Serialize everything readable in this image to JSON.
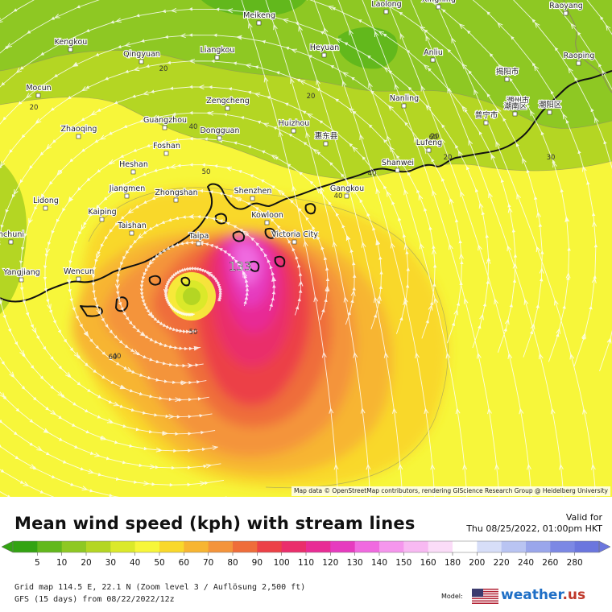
{
  "map": {
    "cities": [
      {
        "name": "Laolong"
      },
      {
        "name": "Xingning"
      },
      {
        "name": "Raoyang"
      },
      {
        "name": "Meikeng"
      },
      {
        "name": "Kengkou"
      },
      {
        "name": "Qingyuan"
      },
      {
        "name": "Liangkou"
      },
      {
        "name": "Heyuan"
      },
      {
        "name": "Anliu"
      },
      {
        "name": "Raoping"
      },
      {
        "name": "揭阳市"
      },
      {
        "name": "潮州市"
      },
      {
        "name": "Mocun"
      },
      {
        "name": "Zengcheng"
      },
      {
        "name": "Nanling"
      },
      {
        "name": "潮南区"
      },
      {
        "name": "潮阳区"
      },
      {
        "name": "普宁市"
      },
      {
        "name": "Zhaoqing"
      },
      {
        "name": "Guangzhou"
      },
      {
        "name": "Dongguan"
      },
      {
        "name": "Huizhou"
      },
      {
        "name": "惠东县"
      },
      {
        "name": "Lufeng"
      },
      {
        "name": "Foshan"
      },
      {
        "name": "Heshan"
      },
      {
        "name": "Shanwei"
      },
      {
        "name": "Jiangmen"
      },
      {
        "name": "Zhongshan"
      },
      {
        "name": "Shenzhen"
      },
      {
        "name": "Gangkou"
      },
      {
        "name": "Lidong"
      },
      {
        "name": "Kaiping"
      },
      {
        "name": "Kowloon"
      },
      {
        "name": "Taishan"
      },
      {
        "name": "Victoria City"
      },
      {
        "name": "Taipa"
      },
      {
        "name": "Yangjiang"
      },
      {
        "name": "Wencun"
      },
      {
        "name": "nchuni"
      }
    ],
    "peak_label": "133",
    "contour_labels": [
      "20",
      "20",
      "20",
      "40",
      "20",
      "20",
      "30",
      "40",
      "40",
      "50",
      "50",
      "40",
      "60",
      "60"
    ],
    "attribution": "Map data © OpenStreetMap contributors, rendering GIScience Research Group @ Heidelberg University"
  },
  "header": {
    "title": "Mean wind speed (kph) with stream lines",
    "valid_label": "Valid for",
    "valid_value": "Thu 08/25/2022, 01:00pm HKT"
  },
  "legend": {
    "values": [
      "5",
      "10",
      "20",
      "30",
      "40",
      "50",
      "60",
      "70",
      "80",
      "90",
      "100",
      "110",
      "120",
      "130",
      "140",
      "150",
      "160",
      "180",
      "200",
      "220",
      "240",
      "260",
      "280"
    ],
    "colors": [
      "#33a312",
      "#62b81c",
      "#8ec823",
      "#b4d623",
      "#dbe92a",
      "#f7f63a",
      "#f9d82b",
      "#f7b532",
      "#f4943b",
      "#ef6d3a",
      "#ec4147",
      "#ea2e6b",
      "#e82c95",
      "#e63bbf",
      "#f06ae0",
      "#f596ed",
      "#f8b9f2",
      "#fbdcf8",
      "#ffffff",
      "#d7def8",
      "#b9c4f2",
      "#9aa6eb",
      "#7c88e4",
      "#6b76de"
    ]
  },
  "footer": {
    "grid_text": "Grid map 114.5 E, 22.1 N (Zoom level 3 / Auflösung 2,500 ft)",
    "model_text": "GFS (15 days) from  08/22/2022/12z",
    "model_label": "Model:",
    "brand": "weather",
    "brand_suffix": ".us"
  },
  "colors": {
    "land_green": "#9fd13b",
    "coastline": "#111111",
    "streamline": "#ffffff",
    "brand_blue": "#1f6fc6"
  }
}
